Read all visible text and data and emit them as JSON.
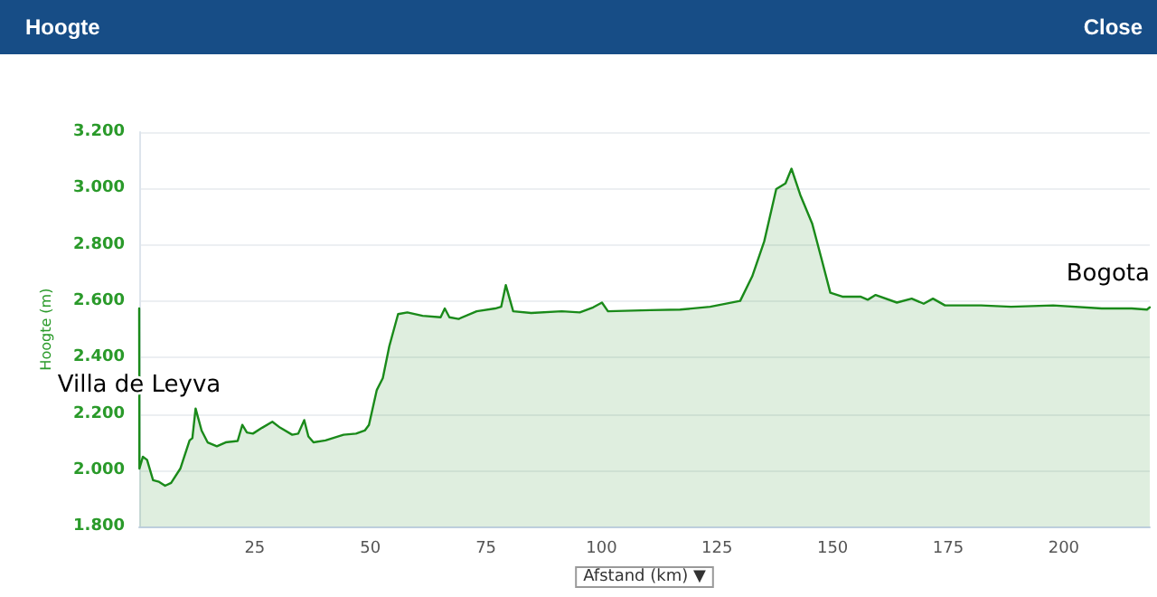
{
  "chart_data": {
    "type": "area",
    "title": "Hoogte",
    "xlabel": "Afstand (km) ▼",
    "ylabel": "Hoogte (m)",
    "x": [
      0,
      0.05,
      0.8,
      1.7,
      3.0,
      4.3,
      5.6,
      6.9,
      8.9,
      10.9,
      11.5,
      12.2,
      13.5,
      14.8,
      16.8,
      18.7,
      21.3,
      22.3,
      23.3,
      24.6,
      26.6,
      28.8,
      30.5,
      33.1,
      34.4,
      35.7,
      36.6,
      37.7,
      40.3,
      44.2,
      46.9,
      48.8,
      49.7,
      51.4,
      52.7,
      54.1,
      56.0,
      58.0,
      61.3,
      65.2,
      66.1,
      67.1,
      69.1,
      73.0,
      77.0,
      78.3,
      79.3,
      80.9,
      84.8,
      91.4,
      95.3,
      98.2,
      100.1,
      101.4,
      110.5,
      117.0,
      123.5,
      130.0,
      132.6,
      135.2,
      137.8,
      139.8,
      141.1,
      143.0,
      145.6,
      147.6,
      149.5,
      152.1,
      156.0,
      157.6,
      159.3,
      163.9,
      167.1,
      169.7,
      171.7,
      174.3,
      182.1,
      188.6,
      197.7,
      208.2,
      214.7,
      218.0,
      218.6
    ],
    "series": [
      {
        "color": "#1a8a1a",
        "values": [
          2574,
          2006,
          2048,
          2037,
          1965,
          1959,
          1945,
          1955,
          2006,
          2106,
          2114,
          2219,
          2141,
          2099,
          2085,
          2099,
          2104,
          2161,
          2134,
          2130,
          2151,
          2172,
          2151,
          2126,
          2130,
          2178,
          2120,
          2099,
          2106,
          2126,
          2130,
          2141,
          2161,
          2285,
          2327,
          2440,
          2554,
          2560,
          2548,
          2543,
          2574,
          2543,
          2537,
          2564,
          2574,
          2580,
          2657,
          2564,
          2558,
          2564,
          2560,
          2578,
          2595,
          2564,
          2568,
          2570,
          2580,
          2601,
          2688,
          2812,
          2998,
          3018,
          3070,
          2977,
          2874,
          2750,
          2630,
          2616,
          2616,
          2605,
          2622,
          2595,
          2609,
          2591,
          2609,
          2585,
          2585,
          2580,
          2585,
          2574,
          2574,
          2570,
          2578
        ]
      }
    ],
    "xlim": [
      0,
      218.6
    ],
    "xticks": [
      25,
      50,
      75,
      100,
      125,
      150,
      175,
      200
    ],
    "ylim": [
      1800,
      3200
    ],
    "yticks": [
      {
        "value": 1800,
        "label": "1.800"
      },
      {
        "value": 2000,
        "label": "2.000"
      },
      {
        "value": 2200,
        "label": "2.200"
      },
      {
        "value": 2400,
        "label": "2.400"
      },
      {
        "value": 2600,
        "label": "2.600"
      },
      {
        "value": 2800,
        "label": "2.800"
      },
      {
        "value": 3000,
        "label": "3.000"
      },
      {
        "value": 3200,
        "label": "3.200"
      }
    ],
    "grid": "y",
    "marker": "none",
    "line_style": "solid",
    "annotations": [
      "Close",
      {
        "text": "Villa de Leyva",
        "x": 0,
        "y": 2300
      },
      {
        "text": "Bogota",
        "x": 218.6,
        "y": 2578
      }
    ]
  }
}
